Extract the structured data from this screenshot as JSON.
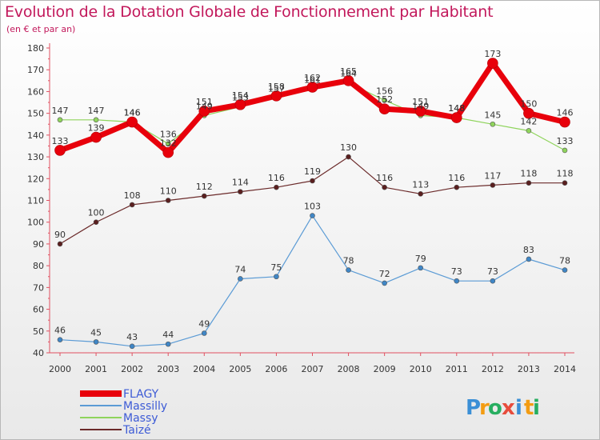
{
  "title": "Evolution de la Dotation Globale de Fonctionnement par Habitant",
  "subtitle": "(en € et par an)",
  "logo": {
    "text": "Proxiti",
    "letters": [
      "P",
      "r",
      "o",
      "x",
      "i",
      "t",
      "i"
    ],
    "colors": [
      "#3b8fd6",
      "#f39c12",
      "#27ae60",
      "#e74c3c",
      "#3b8fd6",
      "#f39c12",
      "#27ae60"
    ]
  },
  "chart_data": {
    "type": "line",
    "x": [
      "2000",
      "2001",
      "2002",
      "2003",
      "2004",
      "2005",
      "2006",
      "2007",
      "2008",
      "2009",
      "2010",
      "2011",
      "2012",
      "2013",
      "2014"
    ],
    "ylim": [
      40,
      180
    ],
    "yticks": [
      40,
      50,
      60,
      70,
      80,
      90,
      100,
      110,
      120,
      130,
      140,
      150,
      160,
      170,
      180
    ],
    "grid": false,
    "legend_position": "bottom-left",
    "series": [
      {
        "name": "FLAGY",
        "color": "#e8000b",
        "values": [
          133,
          139,
          146,
          132,
          151,
          154,
          158,
          162,
          165,
          152,
          151,
          148,
          173,
          150,
          146
        ]
      },
      {
        "name": "Massilly",
        "color": "#5b9bd5",
        "values": [
          46,
          45,
          43,
          44,
          49,
          74,
          75,
          103,
          78,
          72,
          79,
          73,
          73,
          83,
          78
        ]
      },
      {
        "name": "Massy",
        "color": "#8fd45c",
        "values": [
          147,
          147,
          146,
          136,
          149,
          153,
          157,
          161,
          164,
          156,
          149,
          148,
          145,
          142,
          133
        ]
      },
      {
        "name": "Taizé",
        "color": "#6b2a2a",
        "values": [
          90,
          100,
          108,
          110,
          112,
          114,
          116,
          119,
          130,
          116,
          113,
          116,
          117,
          118,
          118
        ]
      }
    ]
  }
}
